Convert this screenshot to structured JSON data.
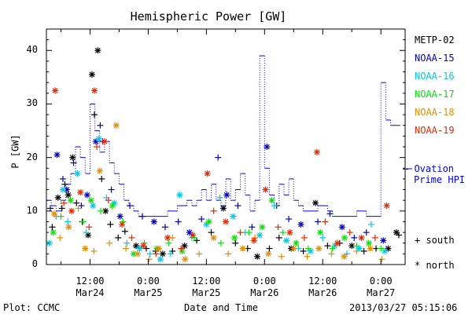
{
  "chart_data": {
    "type": "scatter",
    "title": "Hemispheric Power [GW]",
    "ylabel": "P [GW]",
    "xlabel": "Date and Time",
    "ylim": [
      0,
      44
    ],
    "y_ticks": [
      "0",
      "10",
      "20",
      "30",
      "40"
    ],
    "x_ticks": [
      {
        "t": 12,
        "time": "12:00",
        "date": "Mar24"
      },
      {
        "t": 24,
        "time": "0:00",
        "date": "Mar25"
      },
      {
        "t": 36,
        "time": "12:00",
        "date": "Mar25"
      },
      {
        "t": 48,
        "time": "0:00",
        "date": "Mar26"
      },
      {
        "t": 60,
        "time": "12:00",
        "date": "Mar26"
      },
      {
        "t": 72,
        "time": "0:00",
        "date": "Mar27"
      }
    ],
    "x_range_hours": [
      3,
      77
    ],
    "series": [
      {
        "name": "METP-02",
        "color": "#000000",
        "points": [
          [
            4.2,
            7,
            "+"
          ],
          [
            5.4,
            12.5,
            "*"
          ],
          [
            6.2,
            10.5,
            "+"
          ],
          [
            6.8,
            15,
            "+"
          ],
          [
            7.5,
            13,
            "*"
          ],
          [
            8.4,
            20,
            "*"
          ],
          [
            9.2,
            11.5,
            "+"
          ],
          [
            10.4,
            8,
            "+"
          ],
          [
            11.6,
            5.5,
            "*"
          ],
          [
            12.4,
            35.5,
            "*"
          ],
          [
            12.9,
            28,
            "+"
          ],
          [
            13.6,
            40,
            "*"
          ],
          [
            14.4,
            16,
            "+"
          ],
          [
            15.2,
            10,
            "*"
          ],
          [
            16.2,
            7.5,
            "+"
          ],
          [
            17.8,
            5,
            "+"
          ],
          [
            19.2,
            6.2,
            "+"
          ],
          [
            21.5,
            3.5,
            "*"
          ],
          [
            23.6,
            3,
            "+"
          ],
          [
            25.5,
            2.5,
            "+"
          ],
          [
            27,
            2,
            "*"
          ],
          [
            29,
            2.5,
            "+"
          ],
          [
            31.5,
            3.5,
            "*"
          ],
          [
            34,
            4.5,
            "+"
          ],
          [
            37,
            6,
            "+"
          ],
          [
            39.5,
            10.5,
            "*"
          ],
          [
            42,
            4,
            "+"
          ],
          [
            44.5,
            3,
            "+"
          ],
          [
            46.5,
            1.5,
            "*"
          ],
          [
            49,
            3,
            "+"
          ],
          [
            51,
            5,
            "+"
          ],
          [
            53.5,
            3,
            "*"
          ],
          [
            56,
            2.5,
            "+"
          ],
          [
            58.5,
            11.5,
            "*"
          ],
          [
            61,
            3.5,
            "+"
          ],
          [
            63.5,
            4,
            "+"
          ],
          [
            66,
            3.5,
            "*"
          ],
          [
            68.5,
            2.5,
            "+"
          ],
          [
            71,
            3,
            "+"
          ],
          [
            73.5,
            3,
            "*"
          ],
          [
            75.2,
            6,
            "*"
          ],
          [
            75.7,
            5.5,
            "+"
          ]
        ]
      },
      {
        "name": "NOAA-15",
        "color": "#0000c8",
        "points": [
          [
            3.8,
            10.5,
            "+"
          ],
          [
            5.2,
            20.5,
            "*"
          ],
          [
            6.4,
            16,
            "+"
          ],
          [
            7.2,
            14,
            "*"
          ],
          [
            8.6,
            19,
            "+"
          ],
          [
            10.2,
            11,
            "+"
          ],
          [
            11.4,
            13,
            "*"
          ],
          [
            13.2,
            23,
            "*"
          ],
          [
            14.1,
            26,
            "+"
          ],
          [
            14.6,
            23,
            "+"
          ],
          [
            16.4,
            14,
            "+"
          ],
          [
            18.2,
            9,
            "*"
          ],
          [
            20.2,
            11,
            "+"
          ],
          [
            22.8,
            9,
            "+"
          ],
          [
            25.2,
            8,
            "*"
          ],
          [
            27.5,
            7,
            "+"
          ],
          [
            30.2,
            8,
            "+"
          ],
          [
            32.5,
            6,
            "*"
          ],
          [
            35,
            8.5,
            "+"
          ],
          [
            38.4,
            20,
            "+"
          ],
          [
            40.2,
            13,
            "*"
          ],
          [
            42.5,
            11,
            "+"
          ],
          [
            45.4,
            7,
            "+"
          ],
          [
            48.5,
            22,
            "*"
          ],
          [
            50.5,
            11,
            "+"
          ],
          [
            53,
            8.5,
            "+"
          ],
          [
            55.5,
            7.5,
            "*"
          ],
          [
            59,
            8,
            "+"
          ],
          [
            61.5,
            9.5,
            "+"
          ],
          [
            64,
            7,
            "*"
          ],
          [
            66.5,
            5,
            "+"
          ],
          [
            69,
            6,
            "+"
          ],
          [
            72.5,
            4.5,
            "*"
          ]
        ]
      },
      {
        "name": "NOAA-16",
        "color": "#00c8e6",
        "points": [
          [
            3.6,
            4,
            "*"
          ],
          [
            5,
            9,
            "+"
          ],
          [
            6.4,
            14,
            "*"
          ],
          [
            7.4,
            8,
            "+"
          ],
          [
            9.4,
            17,
            "*"
          ],
          [
            11.2,
            6,
            "+"
          ],
          [
            12.6,
            11,
            "*"
          ],
          [
            13.8,
            23.5,
            "*"
          ],
          [
            15.4,
            12.5,
            "+"
          ],
          [
            17,
            11.5,
            "*"
          ],
          [
            19.6,
            4,
            "+"
          ],
          [
            22.2,
            3,
            "*"
          ],
          [
            24.4,
            2,
            "+"
          ],
          [
            26.5,
            1,
            "*"
          ],
          [
            28.6,
            2,
            "+"
          ],
          [
            30.5,
            13,
            "*"
          ],
          [
            33,
            5,
            "+"
          ],
          [
            36,
            7.5,
            "*"
          ],
          [
            38.8,
            12.5,
            "+"
          ],
          [
            41.5,
            9,
            "*"
          ],
          [
            44,
            6,
            "+"
          ],
          [
            47,
            5.5,
            "*"
          ],
          [
            50,
            11,
            "+"
          ],
          [
            52.5,
            4.5,
            "*"
          ],
          [
            55,
            3,
            "+"
          ],
          [
            57.5,
            2.5,
            "*"
          ],
          [
            60,
            5,
            "+"
          ],
          [
            62.5,
            3.5,
            "*"
          ],
          [
            65,
            2,
            "+"
          ],
          [
            67.5,
            3,
            "*"
          ],
          [
            70,
            7.5,
            "+"
          ],
          [
            72.8,
            2.5,
            "*"
          ]
        ]
      },
      {
        "name": "NOAA-17",
        "color": "#00e600",
        "points": [
          [
            4.4,
            6,
            "*"
          ],
          [
            6,
            9,
            "+"
          ],
          [
            8,
            12,
            "*"
          ],
          [
            10.6,
            8,
            "+"
          ],
          [
            12.2,
            12,
            "*"
          ],
          [
            14.2,
            10,
            "+"
          ],
          [
            16.6,
            11,
            "*"
          ],
          [
            18.8,
            8,
            "+"
          ],
          [
            21,
            2,
            "*"
          ],
          [
            23.2,
            4,
            "+"
          ],
          [
            25.8,
            3,
            "*"
          ],
          [
            28.2,
            4,
            "+"
          ],
          [
            31,
            2.5,
            "*"
          ],
          [
            33.5,
            5,
            "+"
          ],
          [
            36.5,
            8,
            "*"
          ],
          [
            39,
            4,
            "+"
          ],
          [
            41.8,
            5,
            "*"
          ],
          [
            44.8,
            6,
            "+"
          ],
          [
            47.5,
            7,
            "*"
          ],
          [
            49.5,
            12,
            "*"
          ],
          [
            51.8,
            6,
            "+"
          ],
          [
            54.5,
            4,
            "*"
          ],
          [
            57,
            3,
            "+"
          ],
          [
            59.5,
            6,
            "*"
          ],
          [
            62,
            3,
            "+"
          ],
          [
            64.5,
            5,
            "*"
          ],
          [
            67,
            3.5,
            "+"
          ],
          [
            69.5,
            4,
            "*"
          ],
          [
            72,
            3,
            "+"
          ]
        ]
      },
      {
        "name": "NOAA-18",
        "color": "#e68c00",
        "points": [
          [
            4.6,
            9.5,
            "*"
          ],
          [
            5.8,
            5,
            "+"
          ],
          [
            7.6,
            7,
            "*"
          ],
          [
            9.6,
            10.5,
            "+"
          ],
          [
            11,
            3,
            "*"
          ],
          [
            12.8,
            2.5,
            "+"
          ],
          [
            14,
            17.5,
            "*"
          ],
          [
            16,
            4,
            "+"
          ],
          [
            17.4,
            26,
            "*"
          ],
          [
            19.4,
            3,
            "+"
          ],
          [
            21.8,
            2,
            "*"
          ],
          [
            24.2,
            1,
            "+"
          ],
          [
            26.2,
            3,
            "*"
          ],
          [
            29,
            5,
            "+"
          ],
          [
            31.6,
            1,
            "*"
          ],
          [
            34.5,
            2,
            "+"
          ],
          [
            37.5,
            5,
            "*"
          ],
          [
            40.5,
            2,
            "+"
          ],
          [
            43.5,
            3,
            "*"
          ],
          [
            46,
            5,
            "+"
          ],
          [
            48.8,
            2,
            "*"
          ],
          [
            51.5,
            1.5,
            "+"
          ],
          [
            54,
            3,
            "*"
          ],
          [
            56.8,
            1.5,
            "+"
          ],
          [
            59.2,
            3,
            "*"
          ],
          [
            61.8,
            2,
            "+"
          ],
          [
            64.4,
            1.5,
            "*"
          ],
          [
            67,
            2.5,
            "+"
          ],
          [
            69.8,
            3,
            "*"
          ],
          [
            72.2,
            1,
            "+"
          ]
        ]
      },
      {
        "name": "NOAA-19",
        "color": "#e62800",
        "points": [
          [
            4.8,
            32.5,
            "*"
          ],
          [
            6.6,
            11.5,
            "+"
          ],
          [
            8.2,
            10,
            "*"
          ],
          [
            10,
            13.5,
            "*"
          ],
          [
            11.8,
            7,
            "+"
          ],
          [
            12.9,
            32.5,
            "*"
          ],
          [
            13.4,
            22,
            "+"
          ],
          [
            15,
            23,
            "*"
          ],
          [
            15.8,
            12,
            "+"
          ],
          [
            18.6,
            7.5,
            "*"
          ],
          [
            20.6,
            5,
            "+"
          ],
          [
            23,
            3.5,
            "*"
          ],
          [
            25.6,
            2,
            "+"
          ],
          [
            28,
            5,
            "*"
          ],
          [
            30.8,
            3,
            "+"
          ],
          [
            33.2,
            5.5,
            "*"
          ],
          [
            36.2,
            17,
            "*"
          ],
          [
            37.5,
            10,
            "+"
          ],
          [
            40,
            8,
            "*"
          ],
          [
            43,
            6,
            "+"
          ],
          [
            45.8,
            4.5,
            "*"
          ],
          [
            48.2,
            14,
            "*"
          ],
          [
            50.8,
            7,
            "+"
          ],
          [
            53.2,
            6,
            "*"
          ],
          [
            56.2,
            5,
            "+"
          ],
          [
            58.8,
            21,
            "*"
          ],
          [
            60.5,
            8,
            "+"
          ],
          [
            63,
            4,
            "*"
          ],
          [
            65.6,
            6,
            "+"
          ],
          [
            68,
            5,
            "*"
          ],
          [
            70.8,
            5,
            "+"
          ],
          [
            73.2,
            11,
            "*"
          ]
        ]
      }
    ],
    "ovation_hpi": {
      "name": "Ovation Prime HPI",
      "color": "#0000ff",
      "steps": [
        [
          3.2,
          12
        ],
        [
          4,
          11
        ],
        [
          5,
          10
        ],
        [
          6,
          12
        ],
        [
          7,
          15
        ],
        [
          8,
          17
        ],
        [
          9,
          22
        ],
        [
          10,
          20
        ],
        [
          11,
          17
        ],
        [
          12,
          30
        ],
        [
          13,
          25
        ],
        [
          14,
          21
        ],
        [
          15,
          23
        ],
        [
          16,
          19
        ],
        [
          17,
          17
        ],
        [
          18,
          15
        ],
        [
          19,
          12
        ],
        [
          20,
          11
        ],
        [
          21,
          10
        ],
        [
          22,
          9
        ],
        [
          24,
          9
        ],
        [
          26,
          9
        ],
        [
          28,
          10
        ],
        [
          30,
          11
        ],
        [
          32,
          12
        ],
        [
          33,
          11
        ],
        [
          34,
          12
        ],
        [
          35,
          14
        ],
        [
          36,
          12
        ],
        [
          37,
          15
        ],
        [
          38,
          12
        ],
        [
          39,
          11
        ],
        [
          40,
          16
        ],
        [
          41,
          12
        ],
        [
          42,
          14
        ],
        [
          43,
          17
        ],
        [
          44,
          13
        ],
        [
          45,
          10
        ],
        [
          46,
          12
        ],
        [
          47,
          39
        ],
        [
          48,
          18
        ],
        [
          49,
          13
        ],
        [
          50,
          11
        ],
        [
          51,
          15
        ],
        [
          52,
          13
        ],
        [
          53,
          16
        ],
        [
          54,
          12
        ],
        [
          55,
          11
        ],
        [
          56,
          10
        ],
        [
          57,
          10
        ],
        [
          59,
          11
        ],
        [
          61,
          10
        ],
        [
          62,
          9
        ],
        [
          64,
          9
        ],
        [
          66,
          9
        ],
        [
          67,
          10
        ],
        [
          69,
          9
        ],
        [
          71,
          9
        ],
        [
          72,
          34
        ],
        [
          73,
          27
        ],
        [
          74,
          26
        ],
        [
          75,
          26
        ]
      ]
    },
    "legend": {
      "position": "right",
      "entries": [
        "METP-02",
        "NOAA-15",
        "NOAA-16",
        "NOAA-17",
        "NOAA-18",
        "NOAA-19"
      ],
      "ovation_line1": "— Ovation",
      "ovation_line2": "Prime HPI",
      "marker_south": "+ south",
      "marker_north": "* north"
    }
  },
  "footer": {
    "plot_source": "Plot: CCMC",
    "timestamp": "2013/03/27 05:15:06"
  }
}
